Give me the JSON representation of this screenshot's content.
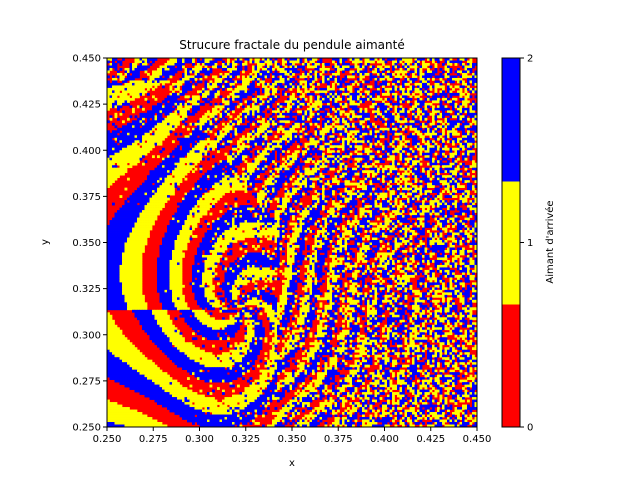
{
  "chart_data": {
    "type": "heatmap",
    "title": "Strucure fractale du pendule aimanté",
    "xlabel": "x",
    "ylabel": "y",
    "xlim": [
      0.25,
      0.45
    ],
    "ylim": [
      0.25,
      0.45
    ],
    "x_ticks": [
      "0.250",
      "0.275",
      "0.300",
      "0.325",
      "0.350",
      "0.375",
      "0.400",
      "0.425",
      "0.450"
    ],
    "y_ticks": [
      "0.250",
      "0.275",
      "0.300",
      "0.325",
      "0.350",
      "0.375",
      "0.400",
      "0.425",
      "0.450"
    ],
    "grid": false,
    "colorbar": {
      "label": "Aimant d'arrivée",
      "range": [
        0,
        2
      ],
      "ticks": [
        "0",
        "1",
        "2"
      ],
      "categories": [
        {
          "value": 0,
          "color": "#ff0000"
        },
        {
          "value": 1,
          "color": "#ffff00"
        },
        {
          "value": 2,
          "color": "#0000ff"
        }
      ]
    }
  }
}
